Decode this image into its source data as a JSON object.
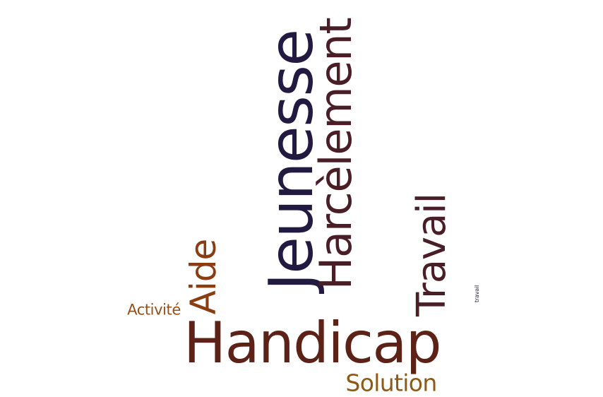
{
  "colors": {
    "dark_navy": "#221a40",
    "dark_maroon": "#4a1e26",
    "brown": "#5c2218",
    "rust": "#8a3c12",
    "orange_brown": "#96501a",
    "gold_brown": "#8e5a16"
  },
  "words": {
    "jeunesse": {
      "text": "Jeunesse",
      "color": "#221a40",
      "orientation": "vertical"
    },
    "harcelement": {
      "text": "Harcèlement",
      "color": "#4a1e26",
      "orientation": "vertical"
    },
    "travail": {
      "text": "Travail",
      "color": "#4a1e26",
      "orientation": "vertical"
    },
    "aide": {
      "text": "Aide",
      "color": "#8a3c12",
      "orientation": "vertical"
    },
    "handicap": {
      "text": "Handicap",
      "color": "#5c2218",
      "orientation": "horizontal"
    },
    "activite": {
      "text": "Activité",
      "color": "#96501a",
      "orientation": "horizontal"
    },
    "solution": {
      "text": "Solution",
      "color": "#8e5a16",
      "orientation": "horizontal"
    },
    "travail_small": {
      "text": "travail",
      "color": "#221a40",
      "orientation": "vertical"
    }
  }
}
